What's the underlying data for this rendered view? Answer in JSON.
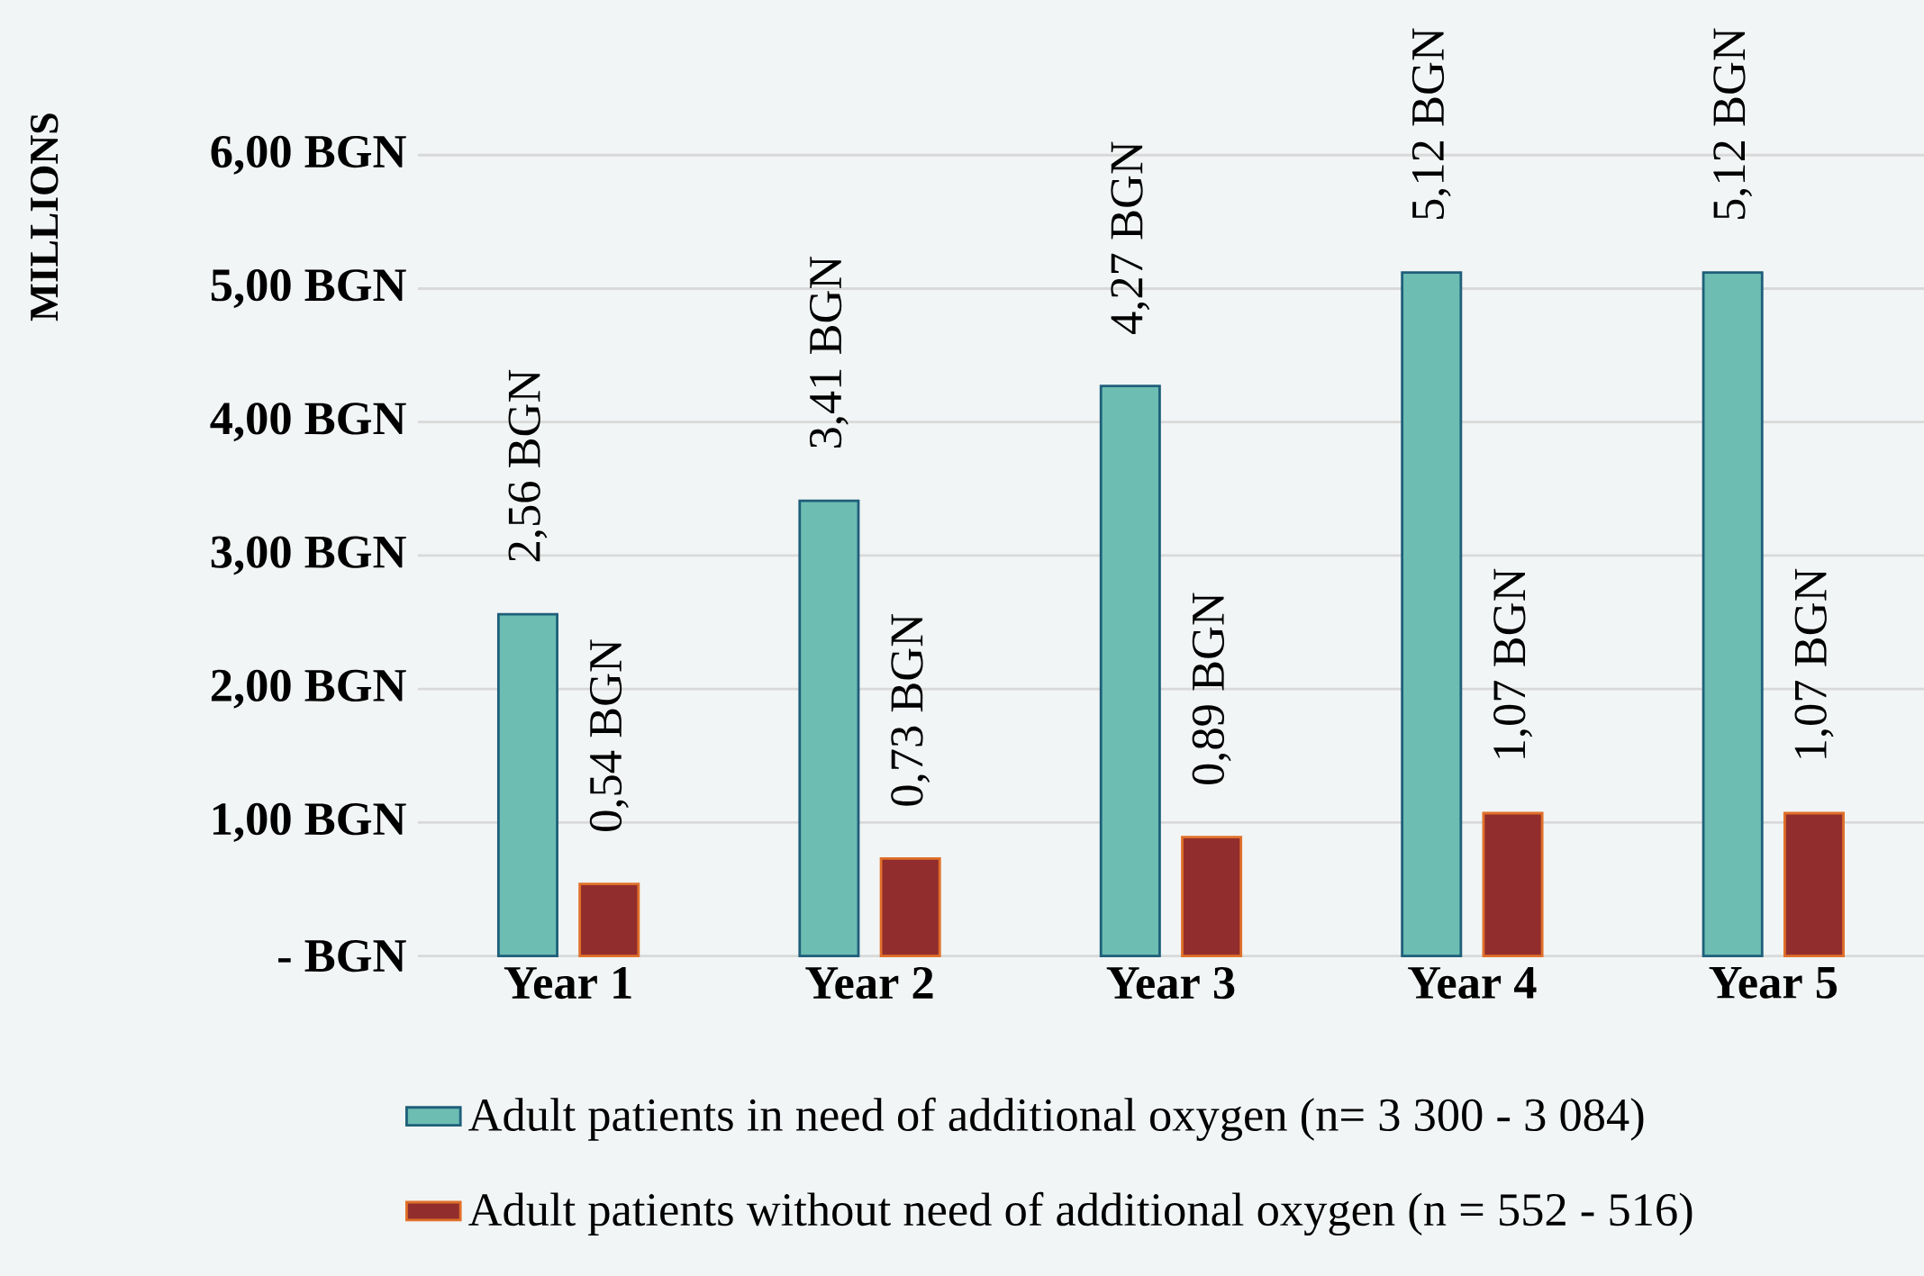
{
  "chart_data": {
    "type": "bar",
    "ylabel": "MILLIONS",
    "categories": [
      "Year 1",
      "Year 2",
      "Year 3",
      "Year 4",
      "Year 5"
    ],
    "series": [
      {
        "name": "Adult patients in need of additional oxygen (n= 3 300 - 3 084)",
        "color": "#6dbdb3",
        "values": [
          2.56,
          3.41,
          4.27,
          5.12,
          5.12
        ],
        "value_labels": [
          "2,56 BGN",
          "3,41 BGN",
          "4,27 BGN",
          "5,12 BGN",
          "5,12 BGN"
        ]
      },
      {
        "name": "Adult patients without need of additional oxygen (n = 552 - 516)",
        "color": "#922d2d",
        "values": [
          0.54,
          0.73,
          0.89,
          1.07,
          1.07
        ],
        "value_labels": [
          "0,54 BGN",
          "0,73 BGN",
          "0,89 BGN",
          "1,07 BGN",
          "1,07 BGN"
        ]
      }
    ],
    "ylim": [
      0,
      6
    ],
    "yticks": [
      {
        "value": 0,
        "label": "-   BGN"
      },
      {
        "value": 1,
        "label": "1,00 BGN"
      },
      {
        "value": 2,
        "label": "2,00 BGN"
      },
      {
        "value": 3,
        "label": "3,00 BGN"
      },
      {
        "value": 4,
        "label": "4,00 BGN"
      },
      {
        "value": 5,
        "label": "5,00 BGN"
      },
      {
        "value": 6,
        "label": "6,00 BGN"
      }
    ],
    "grid": "y",
    "legend": "bottom"
  }
}
